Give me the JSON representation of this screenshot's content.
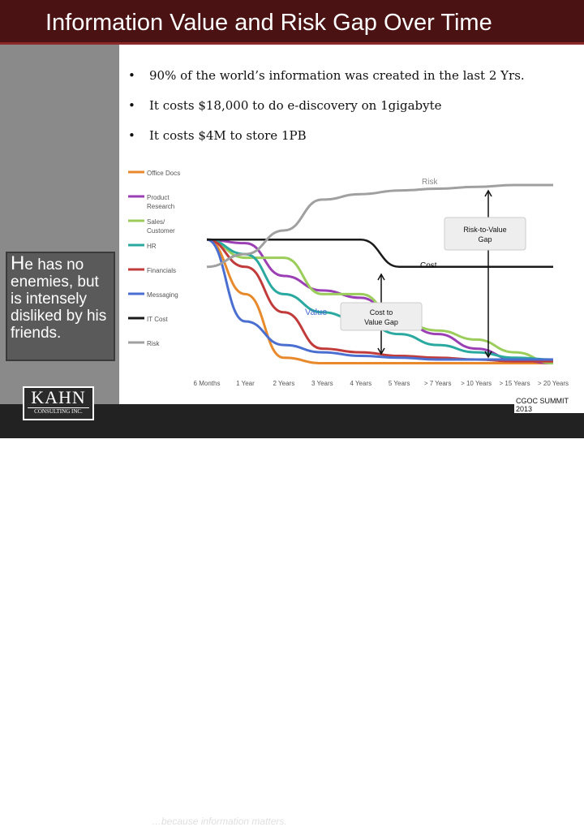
{
  "title": "Information Value and Risk Gap Over Time",
  "bullets": [
    "90% of the world’s information was created in the last 2 Yrs.",
    "It costs $18,000 to do e-discovery on 1gigabyte",
    "It costs $4M to store 1PB"
  ],
  "bullet_symbol": "•",
  "quote": {
    "first": "H",
    "rest": "e has no enemies, but is intensely disliked by his friends."
  },
  "logo": {
    "name": "KAHN",
    "sub": "CONSULTING INC."
  },
  "tagline": "…because information matters.",
  "summit": "CGOC SUMMIT 2013",
  "colors": {
    "title_bar": "#4a1212",
    "Office Docs": "#e88a2c",
    "Product Research": "#9b3fb5",
    "Sales/ Customer": "#9acd5a",
    "HR": "#2aa9a0",
    "Financials": "#c23b3b",
    "Messaging": "#4a6fd0",
    "IT Cost": "#1a1a1a",
    "Risk": "#a0a0a0"
  },
  "chart_data": {
    "type": "line",
    "categories": [
      "6 Months",
      "1 Year",
      "2 Years",
      "3 Years",
      "4 Years",
      "5 Years",
      "> 7 Years",
      "> 10 Years",
      "> 15 Years",
      "> 20 Years"
    ],
    "ylim": [
      0,
      100
    ],
    "series": [
      {
        "name": "Office Docs",
        "values": [
          70,
          40,
          5,
          2,
          2,
          2,
          2,
          2,
          2,
          2
        ]
      },
      {
        "name": "Product Research",
        "values": [
          70,
          68,
          50,
          42,
          38,
          25,
          18,
          10,
          4,
          2
        ]
      },
      {
        "name": "Sales/ Customer",
        "values": [
          70,
          60,
          60,
          40,
          40,
          25,
          20,
          15,
          8,
          2
        ]
      },
      {
        "name": "HR",
        "values": [
          70,
          62,
          40,
          30,
          25,
          18,
          12,
          8,
          5,
          4
        ]
      },
      {
        "name": "Financials",
        "values": [
          70,
          55,
          30,
          10,
          8,
          6,
          5,
          4,
          3,
          3
        ]
      },
      {
        "name": "Messaging",
        "values": [
          70,
          25,
          12,
          8,
          6,
          5,
          4,
          4,
          4,
          4
        ]
      },
      {
        "name": "IT Cost",
        "values": [
          70,
          70,
          70,
          70,
          70,
          55,
          55,
          55,
          55,
          55
        ]
      },
      {
        "name": "Risk",
        "values": [
          55,
          62,
          75,
          92,
          95,
          97,
          98,
          99,
          100,
          100
        ]
      }
    ],
    "legend": [
      "Office Docs",
      "Product Research",
      "Sales/ Customer",
      "HR",
      "Financials",
      "Messaging",
      "IT Cost",
      "Risk"
    ],
    "annotations": {
      "risk_label": "Risk",
      "cost_label": "Cost",
      "value_label": "Value",
      "risk_gap": "Risk-to-Value Gap",
      "cost_gap": "Cost to Value Gap"
    }
  }
}
